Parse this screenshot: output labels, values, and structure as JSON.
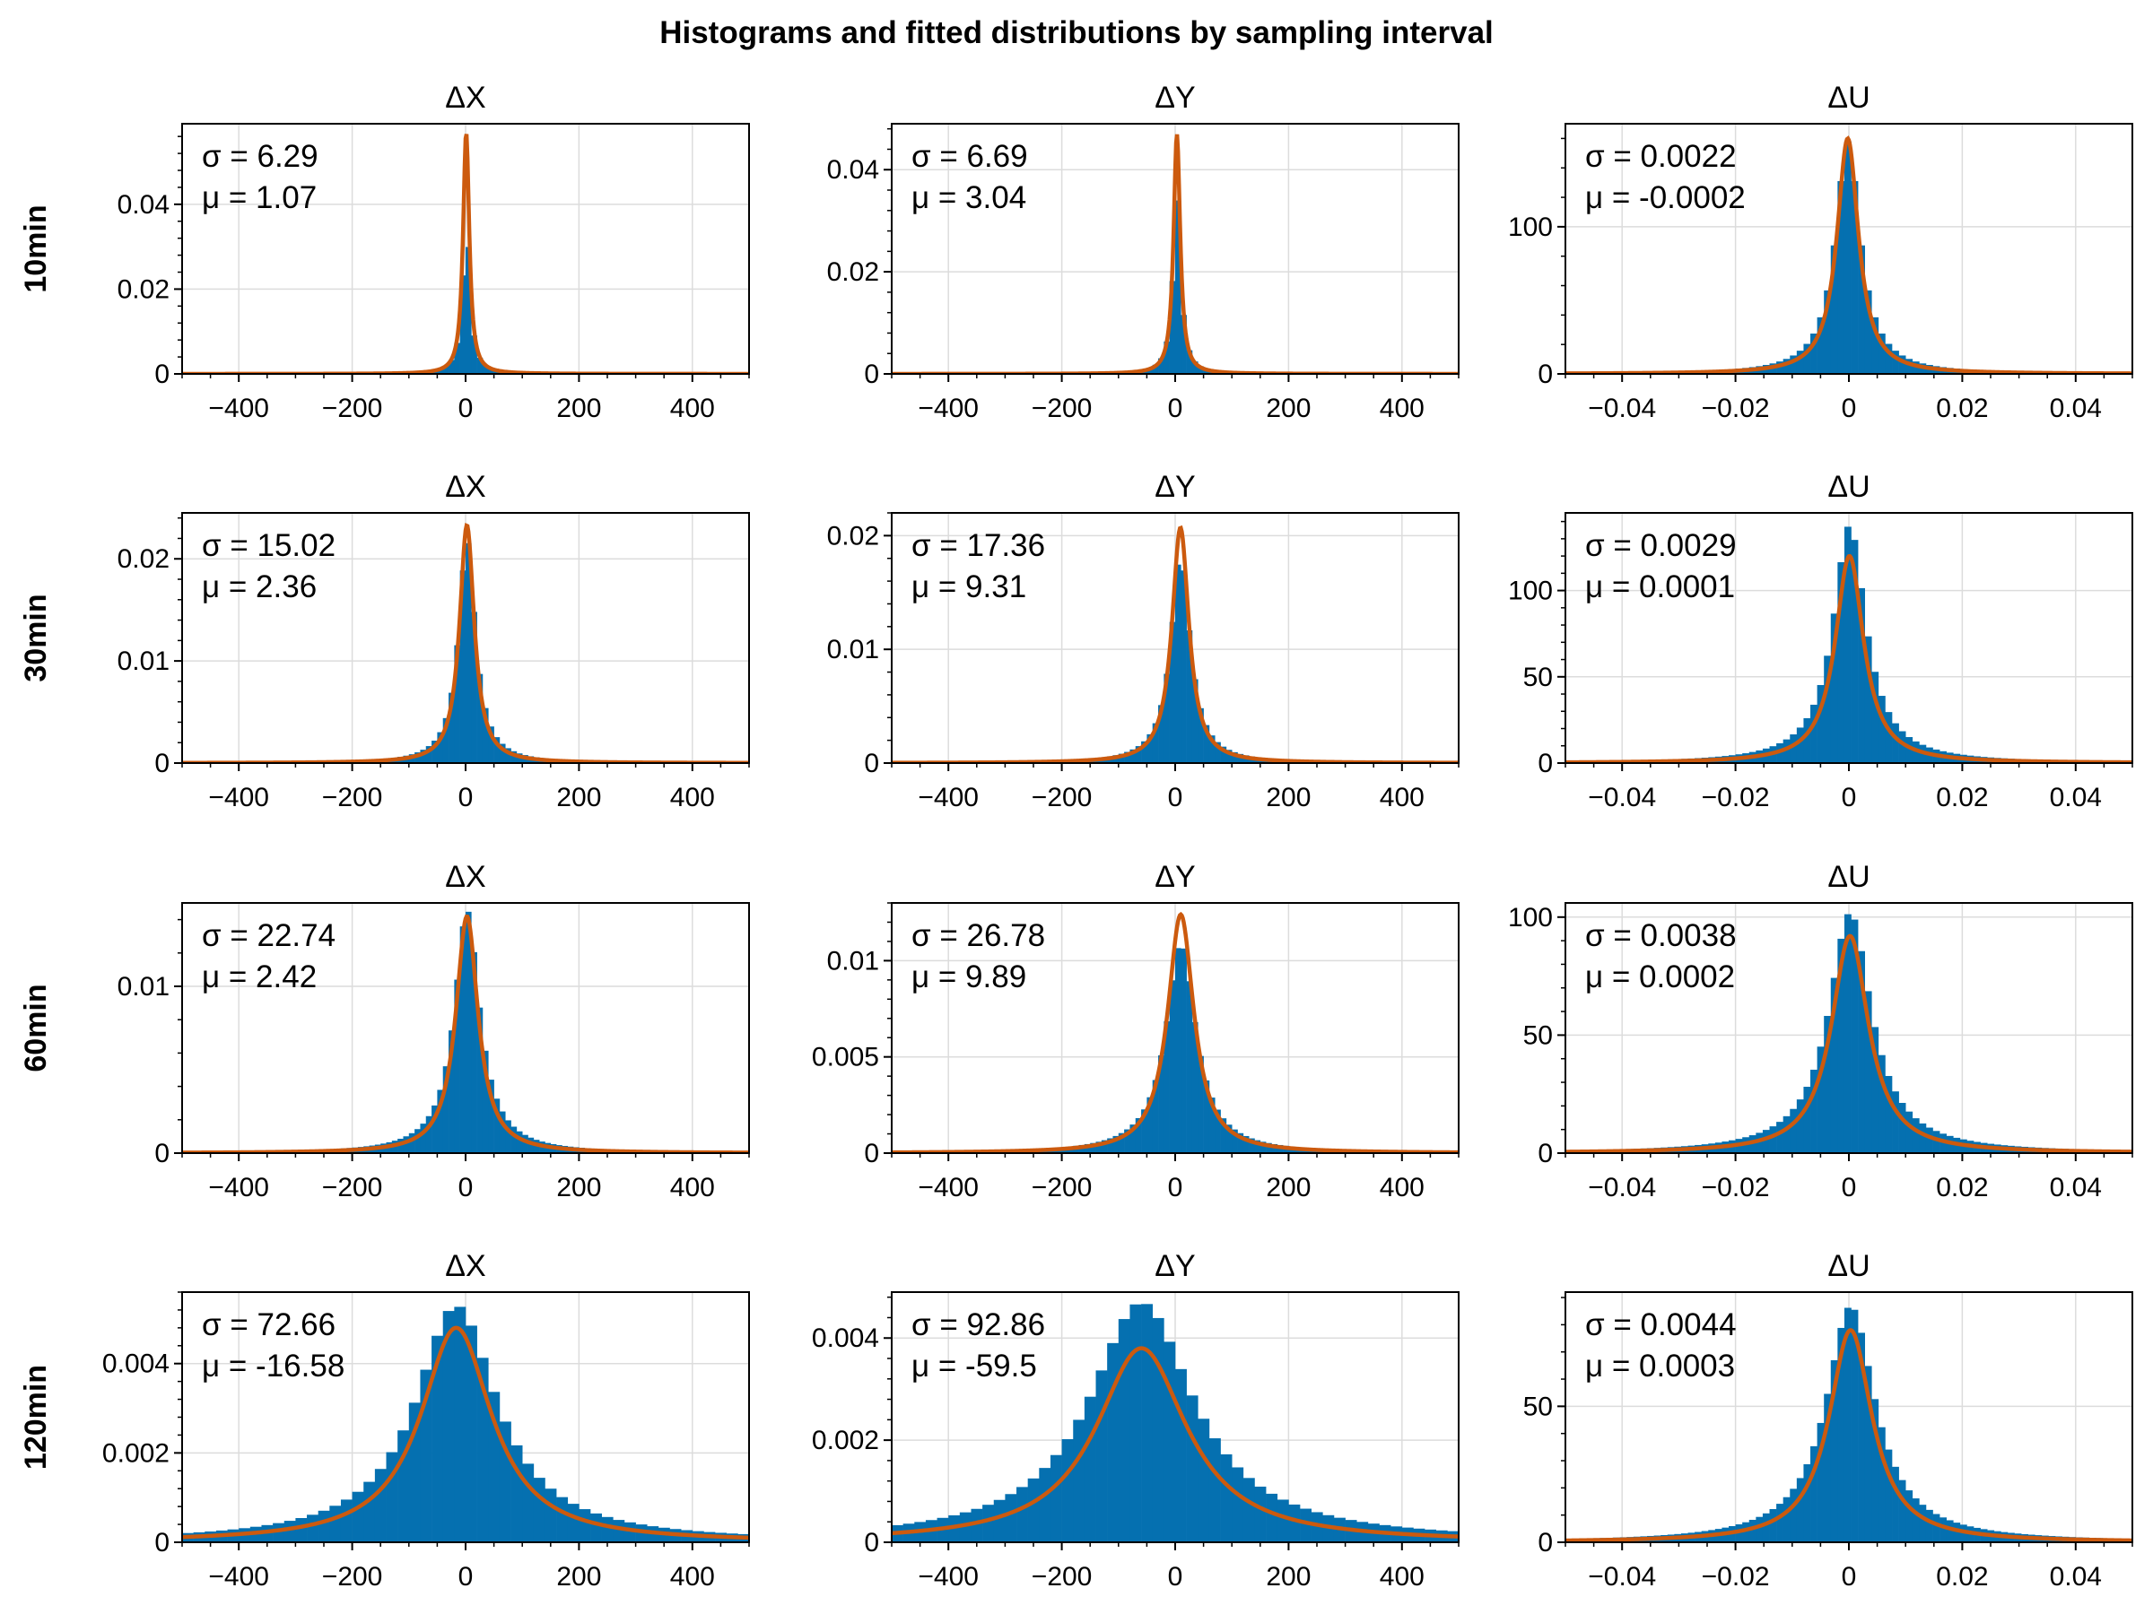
{
  "title": "Histograms and fitted distributions by sampling interval",
  "colors": {
    "hist": "#0570b0",
    "fit": "#cc5a0e",
    "grid": "#dcdcdc",
    "axis": "#000000"
  },
  "rows": [
    "10min",
    "30min",
    "60min",
    "120min"
  ],
  "columns": [
    "ΔX",
    "ΔY",
    "ΔU"
  ],
  "chart_data": [
    {
      "type": "bar",
      "row": "10min",
      "title": "ΔX",
      "xlim": [
        -500,
        500
      ],
      "ylim": [
        0,
        0.059
      ],
      "xticks": [
        -400,
        -200,
        0,
        200,
        400
      ],
      "xtick_labels": [
        "−400",
        "−200",
        "0",
        "200",
        "400"
      ],
      "yticks": [
        0,
        0.02,
        0.04
      ],
      "ytick_labels": [
        "0",
        "0.02",
        "0.04"
      ],
      "sigma_label": "σ = 6.29",
      "mu_label": "μ = 1.07",
      "sigma": 6.29,
      "mu": 1.07,
      "peak": 0.057,
      "fit_shape": "lorentz",
      "hist_bin": 10,
      "hist_max": 0.038
    },
    {
      "type": "bar",
      "row": "10min",
      "title": "ΔY",
      "xlim": [
        -500,
        500
      ],
      "ylim": [
        0,
        0.049
      ],
      "xticks": [
        -400,
        -200,
        0,
        200,
        400
      ],
      "xtick_labels": [
        "−400",
        "−200",
        "0",
        "200",
        "400"
      ],
      "yticks": [
        0,
        0.02,
        0.04
      ],
      "ytick_labels": [
        "0",
        "0.02",
        "0.04"
      ],
      "sigma_label": "σ = 6.69",
      "mu_label": "μ = 3.04",
      "sigma": 6.69,
      "mu": 3.04,
      "peak": 0.047,
      "fit_shape": "lorentz",
      "hist_bin": 10,
      "hist_max": 0.036
    },
    {
      "type": "bar",
      "row": "10min",
      "title": "ΔU",
      "xlim": [
        -0.05,
        0.05
      ],
      "ylim": [
        0,
        170
      ],
      "xticks": [
        -0.04,
        -0.02,
        0,
        0.02,
        0.04
      ],
      "xtick_labels": [
        "−0.04",
        "−0.02",
        "0",
        "0.02",
        "0.04"
      ],
      "yticks": [
        0,
        100
      ],
      "ytick_labels": [
        "0",
        "100"
      ],
      "sigma_label": "σ = 0.0022",
      "mu_label": "μ = -0.0002",
      "sigma": 0.0022,
      "mu": -0.0002,
      "peak": 160,
      "fit_shape": "lorentz",
      "hist_bin": 0.0012,
      "hist_max": 158
    },
    {
      "type": "bar",
      "row": "30min",
      "title": "ΔX",
      "xlim": [
        -500,
        500
      ],
      "ylim": [
        0,
        0.0245
      ],
      "xticks": [
        -400,
        -200,
        0,
        200,
        400
      ],
      "xtick_labels": [
        "−400",
        "−200",
        "0",
        "200",
        "400"
      ],
      "yticks": [
        0,
        0.01,
        0.02
      ],
      "ytick_labels": [
        "0",
        "0.01",
        "0.02"
      ],
      "sigma_label": "σ = 15.02",
      "mu_label": "μ = 2.36",
      "sigma": 15.02,
      "mu": 2.36,
      "peak": 0.0233,
      "fit_shape": "lorentz",
      "hist_bin": 10,
      "hist_max": 0.022
    },
    {
      "type": "bar",
      "row": "30min",
      "title": "ΔY",
      "xlim": [
        -500,
        500
      ],
      "ylim": [
        0,
        0.022
      ],
      "xticks": [
        -400,
        -200,
        0,
        200,
        400
      ],
      "xtick_labels": [
        "−400",
        "−200",
        "0",
        "200",
        "400"
      ],
      "yticks": [
        0,
        0.01,
        0.02
      ],
      "ytick_labels": [
        "0",
        "0.01",
        "0.02"
      ],
      "sigma_label": "σ = 17.36",
      "mu_label": "μ = 9.31",
      "sigma": 17.36,
      "mu": 9.31,
      "peak": 0.0207,
      "fit_shape": "lorentz",
      "hist_bin": 10,
      "hist_max": 0.0182
    },
    {
      "type": "bar",
      "row": "30min",
      "title": "ΔU",
      "xlim": [
        -0.05,
        0.05
      ],
      "ylim": [
        0,
        145
      ],
      "xticks": [
        -0.04,
        -0.02,
        0,
        0.02,
        0.04
      ],
      "xtick_labels": [
        "−0.04",
        "−0.02",
        "0",
        "0.02",
        "0.04"
      ],
      "yticks": [
        0,
        50,
        100
      ],
      "ytick_labels": [
        "0",
        "50",
        "100"
      ],
      "sigma_label": "σ = 0.0029",
      "mu_label": "μ = 0.0001",
      "sigma": 0.0029,
      "mu": 0.0001,
      "peak": 120,
      "fit_shape": "lorentz",
      "hist_bin": 0.0012,
      "hist_max": 138
    },
    {
      "type": "bar",
      "row": "60min",
      "title": "ΔX",
      "xlim": [
        -500,
        500
      ],
      "ylim": [
        0,
        0.015
      ],
      "xticks": [
        -400,
        -200,
        0,
        200,
        400
      ],
      "xtick_labels": [
        "−400",
        "−200",
        "0",
        "200",
        "400"
      ],
      "yticks": [
        0,
        0.01
      ],
      "ytick_labels": [
        "0",
        "0.01"
      ],
      "sigma_label": "σ = 22.74",
      "mu_label": "μ = 2.42",
      "sigma": 22.74,
      "mu": 2.42,
      "peak": 0.0142,
      "fit_shape": "lorentz",
      "hist_bin": 10,
      "hist_max": 0.0146
    },
    {
      "type": "bar",
      "row": "60min",
      "title": "ΔY",
      "xlim": [
        -500,
        500
      ],
      "ylim": [
        0,
        0.013
      ],
      "xticks": [
        -400,
        -200,
        0,
        200,
        400
      ],
      "xtick_labels": [
        "−400",
        "−200",
        "0",
        "200",
        "400"
      ],
      "yticks": [
        0,
        0.005,
        0.01
      ],
      "ytick_labels": [
        "0",
        "0.005",
        "0.01"
      ],
      "sigma_label": "σ = 26.78",
      "mu_label": "μ = 9.89",
      "sigma": 26.78,
      "mu": 9.89,
      "peak": 0.0124,
      "fit_shape": "lorentz",
      "hist_bin": 10,
      "hist_max": 0.0109
    },
    {
      "type": "bar",
      "row": "60min",
      "title": "ΔU",
      "xlim": [
        -0.05,
        0.05
      ],
      "ylim": [
        0,
        106
      ],
      "xticks": [
        -0.04,
        -0.02,
        0,
        0.02,
        0.04
      ],
      "xtick_labels": [
        "−0.04",
        "−0.02",
        "0",
        "0.02",
        "0.04"
      ],
      "yticks": [
        0,
        50,
        100
      ],
      "ytick_labels": [
        "0",
        "50",
        "100"
      ],
      "sigma_label": "σ = 0.0038",
      "mu_label": "μ = 0.0002",
      "sigma": 0.0038,
      "mu": 0.0002,
      "peak": 92,
      "fit_shape": "lorentz",
      "hist_bin": 0.0012,
      "hist_max": 102
    },
    {
      "type": "bar",
      "row": "120min",
      "title": "ΔX",
      "xlim": [
        -500,
        500
      ],
      "ylim": [
        0,
        0.0056
      ],
      "xticks": [
        -400,
        -200,
        0,
        200,
        400
      ],
      "xtick_labels": [
        "−400",
        "−200",
        "0",
        "200",
        "400"
      ],
      "yticks": [
        0,
        0.002,
        0.004
      ],
      "ytick_labels": [
        "0",
        "0.002",
        "0.004"
      ],
      "sigma_label": "σ = 72.66",
      "mu_label": "μ = -16.58",
      "sigma": 72.66,
      "mu": -16.58,
      "peak": 0.0048,
      "fit_shape": "lorentz",
      "hist_bin": 20,
      "hist_max": 0.0053
    },
    {
      "type": "bar",
      "row": "120min",
      "title": "ΔY",
      "xlim": [
        -500,
        500
      ],
      "ylim": [
        0,
        0.0049
      ],
      "xticks": [
        -400,
        -200,
        0,
        200,
        400
      ],
      "xtick_labels": [
        "−400",
        "−200",
        "0",
        "200",
        "400"
      ],
      "yticks": [
        0,
        0.002,
        0.004
      ],
      "ytick_labels": [
        "0",
        "0.002",
        "0.004"
      ],
      "sigma_label": "σ = 92.86",
      "mu_label": "μ = -59.5",
      "sigma": 92.86,
      "mu": -59.5,
      "peak": 0.0038,
      "fit_shape": "lorentz",
      "hist_bin": 20,
      "hist_max": 0.0047
    },
    {
      "type": "bar",
      "row": "120min",
      "title": "ΔU",
      "xlim": [
        -0.05,
        0.05
      ],
      "ylim": [
        0,
        92
      ],
      "xticks": [
        -0.04,
        -0.02,
        0,
        0.02,
        0.04
      ],
      "xtick_labels": [
        "−0.04",
        "−0.02",
        "0",
        "0.02",
        "0.04"
      ],
      "yticks": [
        0,
        50
      ],
      "ytick_labels": [
        "0",
        "50"
      ],
      "sigma_label": "σ = 0.0044",
      "mu_label": "μ = 0.0003",
      "sigma": 0.0044,
      "mu": 0.0003,
      "peak": 78,
      "fit_shape": "lorentz",
      "hist_bin": 0.0012,
      "hist_max": 87
    }
  ]
}
